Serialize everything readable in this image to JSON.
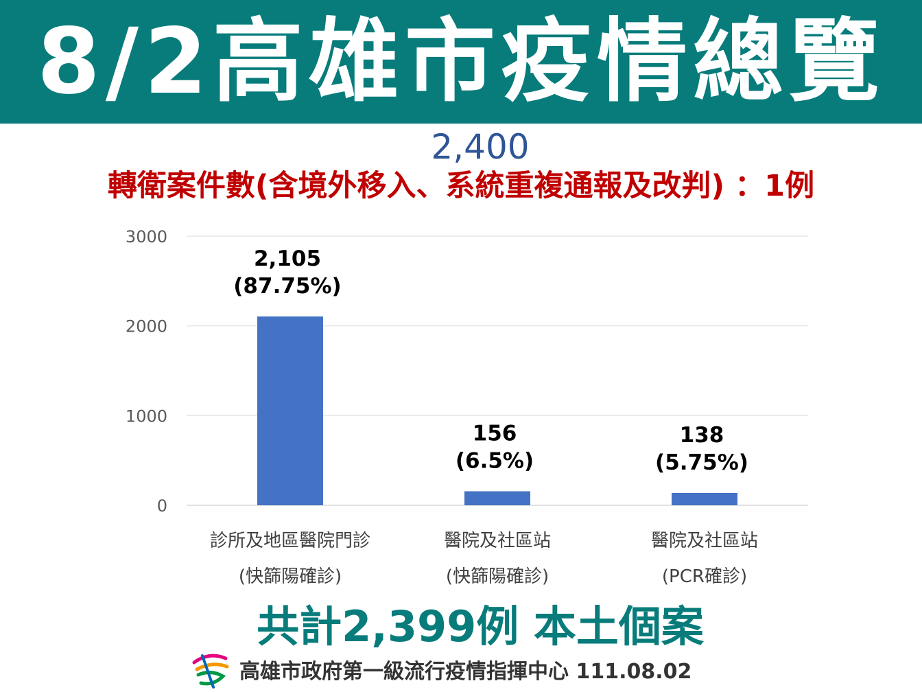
{
  "header": {
    "title": "8/2高雄市疫情總覽"
  },
  "total_figure": "2,400",
  "transfer_note": "轉衛案件數(含境外移入、系統重複通報及改判) ：1例",
  "summary": "共計2,399例 本土個案",
  "footer": {
    "text": "高雄市政府第一級流行疫情指揮中心 111.08.02"
  },
  "colors": {
    "banner": "#077c7b",
    "bar": "#4472c4",
    "note": "#c00000",
    "total": "#2f5597"
  },
  "chart_data": {
    "type": "bar",
    "categories": [
      [
        "診所及地區醫院門診",
        "(快篩陽確診)"
      ],
      [
        "醫院及社區站",
        "(快篩陽確診)"
      ],
      [
        "醫院及社區站",
        "(PCR確診)"
      ]
    ],
    "values": [
      2105,
      156,
      138
    ],
    "value_labels": [
      "2,105",
      "156",
      "138"
    ],
    "percent_labels": [
      "(87.75%)",
      "(6.5%)",
      "(5.75%)"
    ],
    "yticks": [
      0,
      1000,
      2000,
      3000
    ],
    "ylim": [
      0,
      3000
    ],
    "grid": true
  }
}
